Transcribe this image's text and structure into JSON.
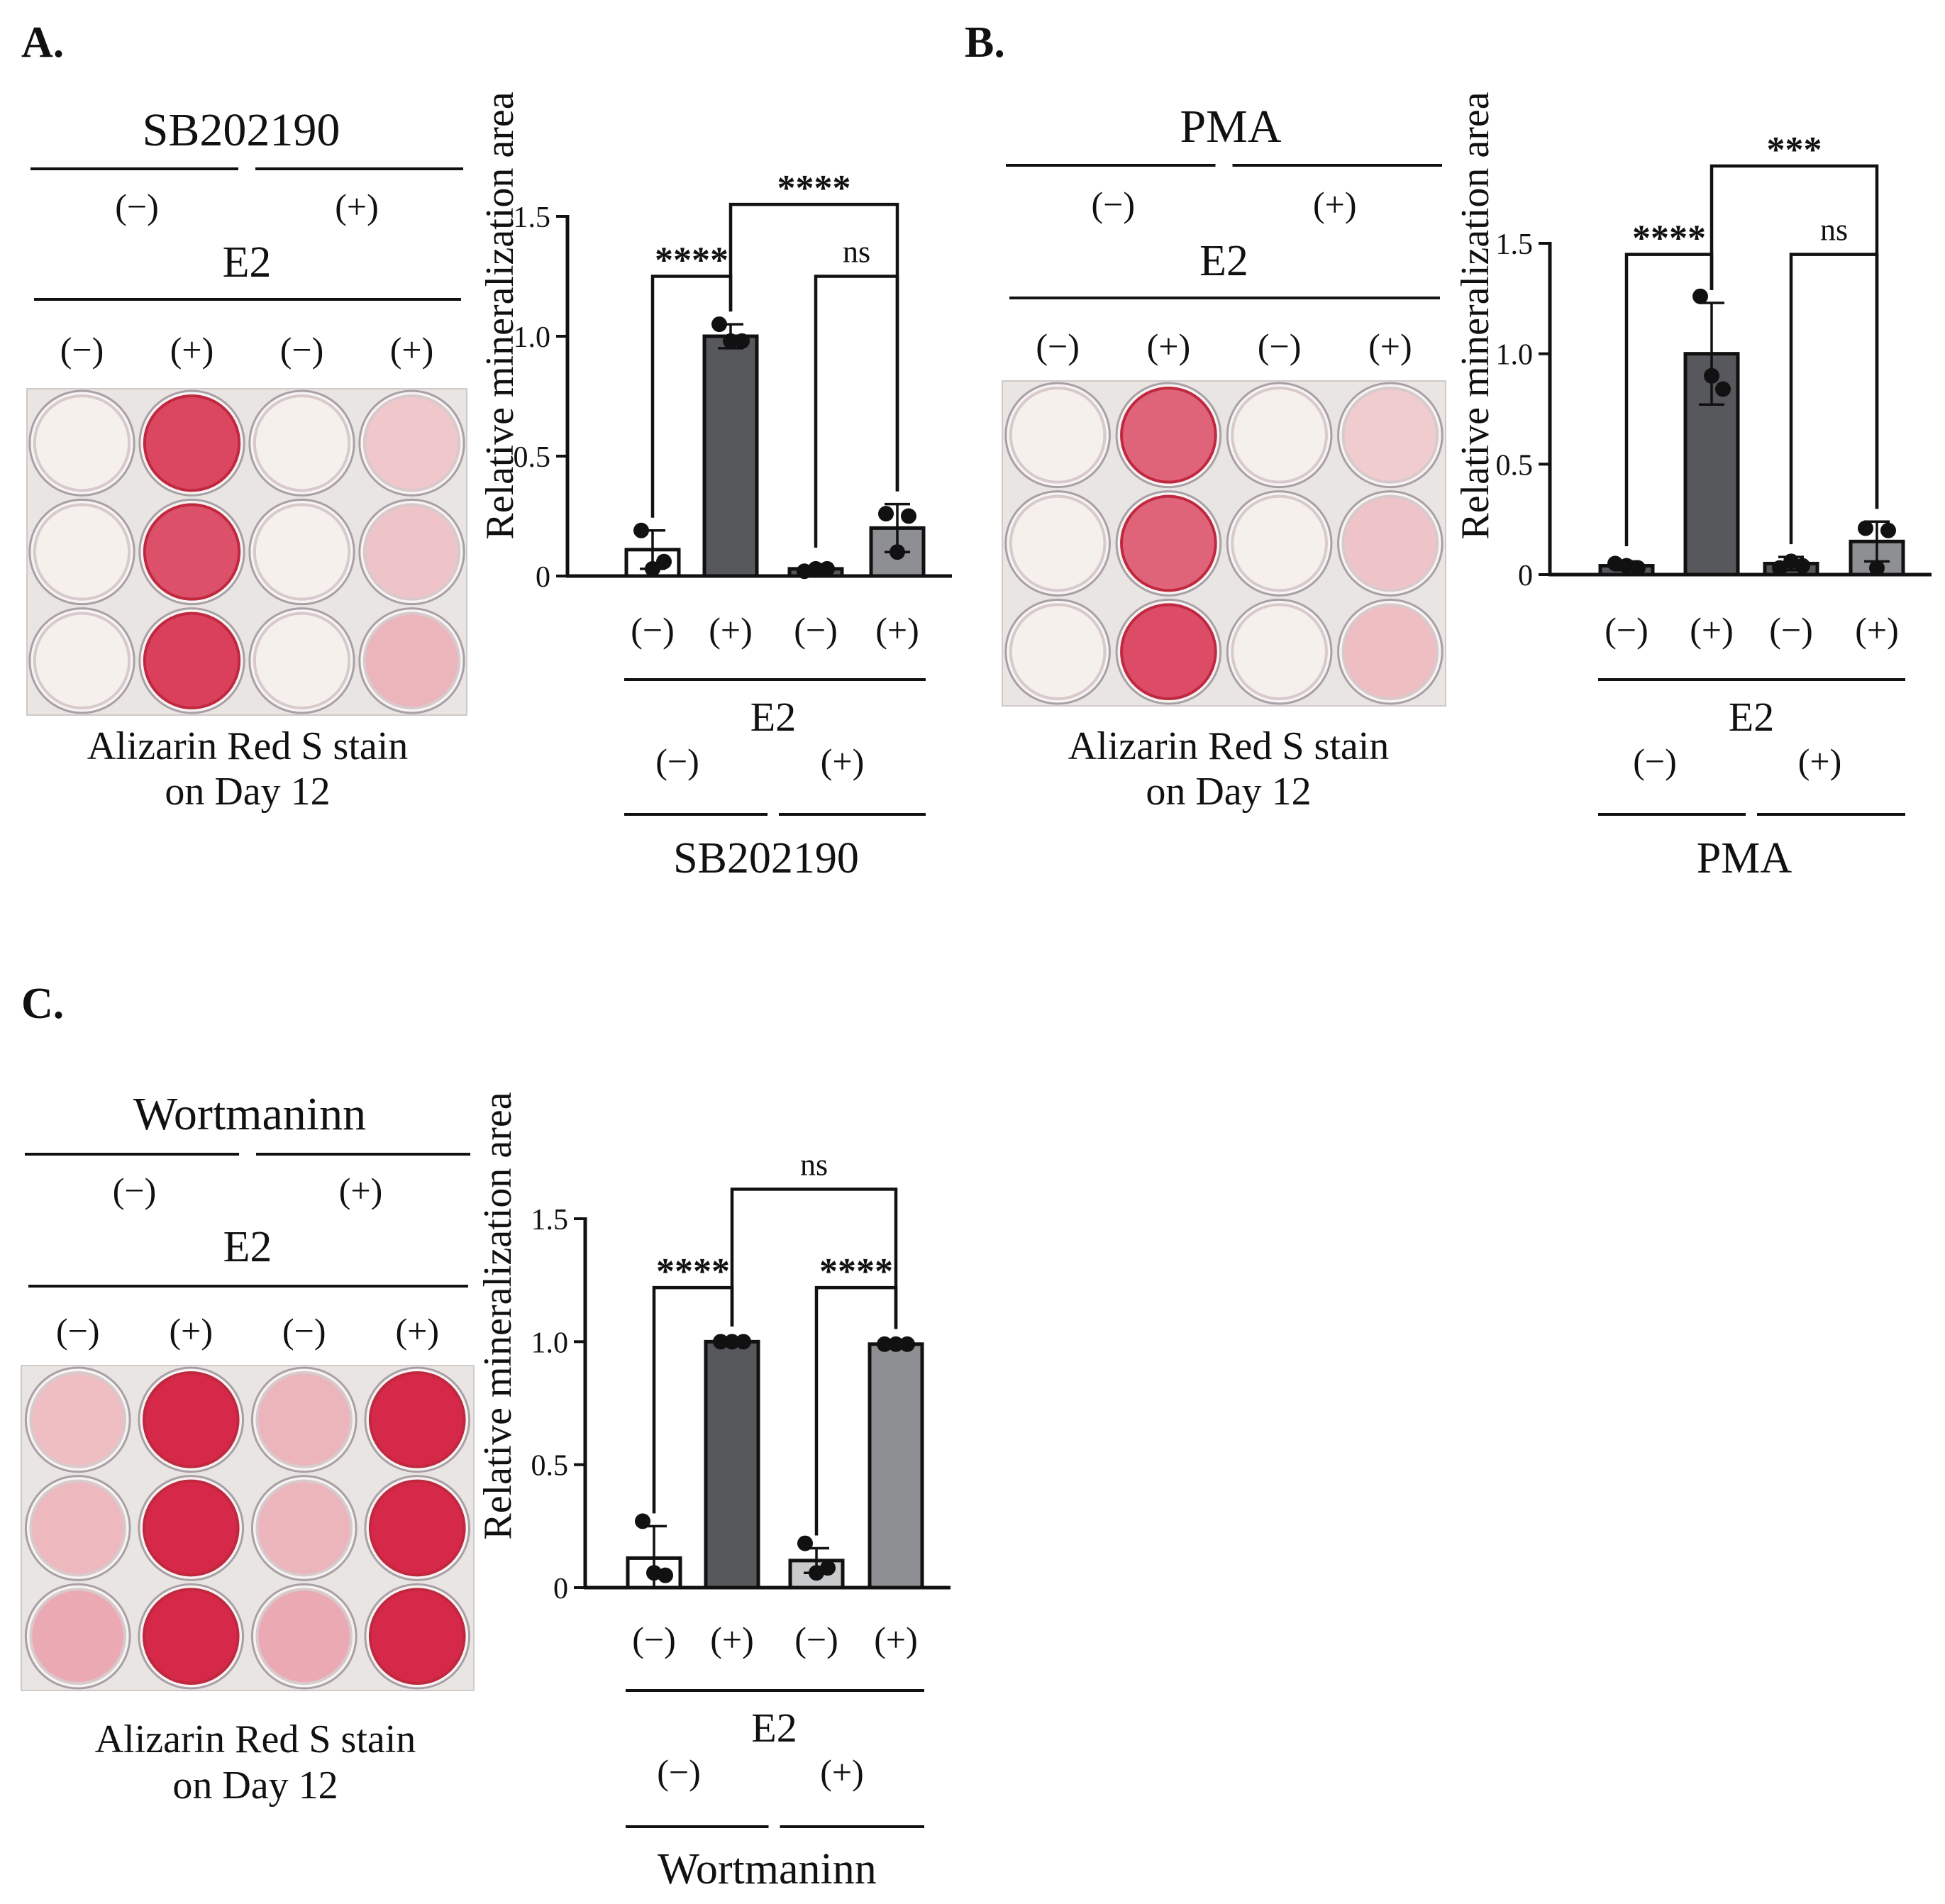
{
  "panels": [
    {
      "letter": "A.",
      "plate": {
        "treatment_label": "SB202190",
        "treatment_levels": [
          "(−)",
          "(+)"
        ],
        "e2_label": "E2",
        "e2_levels": [
          "(−)",
          "(+)",
          "(−)",
          "(+)"
        ],
        "well_stain": [
          [
            0.0,
            0.85,
            0.0,
            0.2
          ],
          [
            0.0,
            0.8,
            0.0,
            0.22
          ],
          [
            0.0,
            0.88,
            0.0,
            0.3
          ]
        ],
        "caption_line1": "Alizarin Red S stain",
        "caption_line2": "on Day 12"
      },
      "chart_data": {
        "type": "bar",
        "ylabel": "Relative mineralization area",
        "ylim": [
          0,
          1.5
        ],
        "yticks": [
          0,
          0.5,
          1.0,
          1.5
        ],
        "ytick_labels": [
          "0",
          "0.5",
          "1.0",
          "1.5"
        ],
        "categories": [
          "(−)",
          "(+)",
          "(−)",
          "(+)"
        ],
        "values": [
          0.11,
          1.0,
          0.03,
          0.2
        ],
        "errors": [
          0.08,
          0.05,
          0.01,
          0.1
        ],
        "points": [
          [
            0.19,
            0.06,
            0.03
          ],
          [
            1.05,
            0.98,
            0.98
          ],
          [
            0.02,
            0.03,
            0.03
          ],
          [
            0.26,
            0.25,
            0.1
          ]
        ],
        "bar_colors": [
          "#ffffff",
          "#56585c",
          "#56585c",
          "#8d8f93"
        ],
        "x_group_label": "E2",
        "treatment_levels": [
          "(−)",
          "(+)"
        ],
        "treatment_label": "SB202190",
        "significance": [
          {
            "from": 0,
            "to": 1,
            "label": "****",
            "y": 1.25
          },
          {
            "from": 2,
            "to": 3,
            "label": "ns",
            "y": 1.25
          },
          {
            "from": 1,
            "to": 3,
            "label": "****",
            "y": 1.55
          }
        ]
      }
    },
    {
      "letter": "B.",
      "plate": {
        "treatment_label": "PMA",
        "treatment_levels": [
          "(−)",
          "(+)"
        ],
        "e2_label": "E2",
        "e2_levels": [
          "(−)",
          "(+)",
          "(−)",
          "(+)"
        ],
        "well_stain": [
          [
            0.0,
            0.7,
            0.0,
            0.18
          ],
          [
            0.0,
            0.7,
            0.0,
            0.22
          ],
          [
            0.0,
            0.82,
            0.0,
            0.25
          ]
        ],
        "caption_line1": "Alizarin Red S stain",
        "caption_line2": "on Day 12"
      },
      "chart_data": {
        "type": "bar",
        "ylabel": "Relative mineralization area",
        "ylim": [
          0,
          1.5
        ],
        "yticks": [
          0,
          0.5,
          1.0,
          1.5
        ],
        "ytick_labels": [
          "0",
          "0.5",
          "1.0",
          "1.5"
        ],
        "categories": [
          "(−)",
          "(+)",
          "(−)",
          "(+)"
        ],
        "values": [
          0.04,
          1.0,
          0.05,
          0.15
        ],
        "errors": [
          0.02,
          0.23,
          0.03,
          0.09
        ],
        "points": [
          [
            0.05,
            0.03,
            0.04
          ],
          [
            1.26,
            0.84,
            0.9
          ],
          [
            0.03,
            0.04,
            0.06
          ],
          [
            0.21,
            0.2,
            0.03
          ]
        ],
        "bar_colors": [
          "#56585c",
          "#56585c",
          "#56585c",
          "#8d8f93"
        ],
        "x_group_label": "E2",
        "treatment_levels": [
          "(−)",
          "(+)"
        ],
        "treatment_label": "PMA",
        "significance": [
          {
            "from": 0,
            "to": 1,
            "label": "****",
            "y": 1.45
          },
          {
            "from": 2,
            "to": 3,
            "label": "ns",
            "y": 1.45
          },
          {
            "from": 1,
            "to": 3,
            "label": "***",
            "y": 1.85
          }
        ]
      }
    },
    {
      "letter": "C.",
      "plate": {
        "treatment_label": "Wortmaninn",
        "treatment_levels": [
          "(−)",
          "(+)"
        ],
        "e2_label": "E2",
        "e2_levels": [
          "(−)",
          "(+)",
          "(−)",
          "(+)"
        ],
        "well_stain": [
          [
            0.25,
            1.0,
            0.3,
            1.0
          ],
          [
            0.28,
            1.0,
            0.3,
            1.0
          ],
          [
            0.35,
            1.0,
            0.35,
            1.0
          ]
        ],
        "caption_line1": "Alizarin Red S stain",
        "caption_line2": "on Day 12"
      },
      "chart_data": {
        "type": "bar",
        "ylabel": "Relative mineralization area",
        "ylim": [
          0,
          1.5
        ],
        "yticks": [
          0,
          0.5,
          1.0,
          1.5
        ],
        "ytick_labels": [
          "0",
          "0.5",
          "1.0",
          "1.5"
        ],
        "categories": [
          "(−)",
          "(+)",
          "(−)",
          "(+)"
        ],
        "values": [
          0.12,
          1.0,
          0.11,
          0.99
        ],
        "errors": [
          0.13,
          0.01,
          0.05,
          0.01
        ],
        "points": [
          [
            0.27,
            0.05,
            0.06
          ],
          [
            1.0,
            1.0,
            1.0
          ],
          [
            0.18,
            0.08,
            0.06
          ],
          [
            0.99,
            0.99,
            0.99
          ]
        ],
        "bar_colors": [
          "#ffffff",
          "#56585c",
          "#c9cacc",
          "#8d8f93"
        ],
        "x_group_label": "E2",
        "treatment_levels": [
          "(−)",
          "(+)"
        ],
        "treatment_label": "Wortmaninn",
        "significance": [
          {
            "from": 0,
            "to": 1,
            "label": "****",
            "y": 1.22
          },
          {
            "from": 2,
            "to": 3,
            "label": "****",
            "y": 1.22
          },
          {
            "from": 1,
            "to": 3,
            "label": "ns",
            "y": 1.62
          }
        ]
      }
    }
  ]
}
